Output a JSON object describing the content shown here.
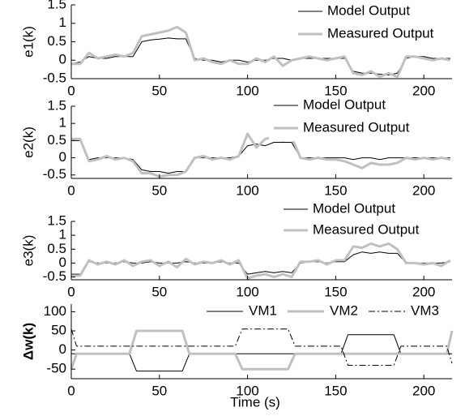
{
  "chart_data": [
    {
      "type": "line",
      "ylabel": "e1(k)",
      "legend": "upper right",
      "x": [
        0,
        5,
        10,
        15,
        20,
        25,
        30,
        35,
        40,
        45,
        50,
        55,
        60,
        65,
        70,
        75,
        80,
        85,
        90,
        95,
        100,
        105,
        110,
        115,
        120,
        125,
        130,
        135,
        140,
        145,
        150,
        155,
        160,
        165,
        170,
        175,
        180,
        185,
        190,
        195,
        200,
        205,
        210,
        215
      ],
      "series": [
        {
          "name": "Model Output",
          "color": "#000000",
          "linewidth": 1,
          "values": [
            -0.1,
            -0.05,
            0.1,
            0.05,
            0.05,
            0.1,
            0.1,
            0.1,
            0.5,
            0.55,
            0.57,
            0.6,
            0.58,
            0.58,
            0.05,
            0,
            0,
            -0.05,
            0,
            0,
            -0.05,
            0,
            0,
            0.05,
            0.05,
            0,
            0.05,
            0.05,
            0.05,
            0.05,
            0.05,
            0.05,
            -0.3,
            -0.35,
            -0.35,
            -0.38,
            -0.4,
            -0.35,
            0.05,
            0.1,
            0.1,
            0.05,
            0.05,
            0.05
          ]
        },
        {
          "name": "Measured Output",
          "color": "#c0c0c0",
          "linewidth": 3,
          "values": [
            -0.1,
            -0.1,
            0.2,
            0.05,
            0.1,
            0.15,
            0.1,
            0.2,
            0.65,
            0.7,
            0.75,
            0.8,
            0.9,
            0.75,
            0,
            0.05,
            -0.05,
            -0.1,
            0,
            -0.1,
            -0.1,
            0.05,
            -0.05,
            0.1,
            -0.15,
            0,
            0.05,
            0.1,
            0.05,
            0,
            0.05,
            0.1,
            -0.35,
            -0.4,
            -0.3,
            -0.45,
            -0.35,
            -0.45,
            0.1,
            0.1,
            0.05,
            0,
            0.05,
            0
          ]
        }
      ],
      "xlim": [
        0,
        216
      ],
      "xticks": [
        0,
        50,
        100,
        150,
        200
      ],
      "ylim": [
        -0.5,
        1.5
      ],
      "yticks": [
        -0.5,
        0,
        0.5,
        1,
        1.5
      ]
    },
    {
      "type": "line",
      "ylabel": "e2(k)",
      "legend": "upper right",
      "x": [
        0,
        5,
        10,
        15,
        20,
        25,
        30,
        35,
        40,
        45,
        50,
        55,
        60,
        65,
        70,
        75,
        80,
        85,
        90,
        95,
        100,
        105,
        110,
        115,
        120,
        125,
        130,
        135,
        140,
        145,
        150,
        155,
        160,
        165,
        170,
        175,
        180,
        185,
        190,
        195,
        200,
        205,
        210,
        215
      ],
      "series": [
        {
          "name": "Model Output",
          "color": "#000000",
          "linewidth": 1,
          "values": [
            0.5,
            0.5,
            -0.05,
            0,
            0,
            0,
            0,
            -0.05,
            -0.35,
            -0.4,
            -0.4,
            -0.45,
            -0.4,
            -0.4,
            0,
            0,
            0,
            0,
            0,
            0.05,
            0.35,
            0.4,
            0.35,
            0.45,
            0.45,
            0.45,
            0,
            0,
            0,
            0,
            0,
            0,
            -0.05,
            0,
            0,
            -0.05,
            0,
            0,
            0,
            0,
            0,
            0,
            0,
            0
          ]
        },
        {
          "name": "Measured Output",
          "color": "#c0c0c0",
          "linewidth": 3,
          "values": [
            0.55,
            0.55,
            -0.1,
            -0.05,
            0.05,
            -0.05,
            0,
            -0.1,
            -0.45,
            -0.45,
            -0.55,
            -0.5,
            -0.5,
            -0.4,
            0,
            0.05,
            -0.05,
            0,
            -0.05,
            0.05,
            0.7,
            0.3,
            0.55,
            0.6,
            0.5,
            0.6,
            0,
            -0.05,
            0,
            -0.05,
            -0.05,
            -0.1,
            -0.2,
            -0.3,
            -0.15,
            -0.2,
            -0.2,
            -0.15,
            0,
            -0.05,
            0,
            -0.05,
            0,
            -0.05
          ]
        }
      ],
      "xlim": [
        0,
        216
      ],
      "xticks": [
        0,
        50,
        100,
        150,
        200
      ],
      "ylim": [
        -0.6,
        1.5
      ],
      "yticks": [
        -0.5,
        0,
        0.5,
        1,
        1.5
      ]
    },
    {
      "type": "line",
      "ylabel": "e3(k)",
      "legend": "upper right",
      "x": [
        0,
        5,
        10,
        15,
        20,
        25,
        30,
        35,
        40,
        45,
        50,
        55,
        60,
        65,
        70,
        75,
        80,
        85,
        90,
        95,
        100,
        105,
        110,
        115,
        120,
        125,
        130,
        135,
        140,
        145,
        150,
        155,
        160,
        165,
        170,
        175,
        180,
        185,
        190,
        195,
        200,
        205,
        210,
        215
      ],
      "series": [
        {
          "name": "Model Output",
          "color": "#000000",
          "linewidth": 1,
          "values": [
            -0.4,
            -0.4,
            0.05,
            0,
            0,
            0,
            0.05,
            0,
            0,
            0.05,
            0,
            0,
            0,
            0.05,
            0,
            0,
            0,
            0.05,
            0,
            0,
            -0.4,
            -0.35,
            -0.3,
            -0.35,
            -0.3,
            -0.35,
            0,
            0.05,
            0.05,
            0,
            0.05,
            0.05,
            0.3,
            0.4,
            0.35,
            0.4,
            0.35,
            0.35,
            0,
            0,
            0,
            0,
            0,
            0.05
          ]
        },
        {
          "name": "Measured Output",
          "color": "#c0c0c0",
          "linewidth": 3,
          "values": [
            -0.45,
            -0.45,
            0.1,
            -0.05,
            0.05,
            -0.05,
            0.1,
            -0.1,
            0.05,
            0.1,
            -0.1,
            0.05,
            -0.15,
            0.15,
            -0.05,
            0.05,
            0,
            0.1,
            -0.05,
            0.1,
            -0.55,
            -0.45,
            -0.4,
            -0.5,
            -0.4,
            -0.5,
            0.05,
            0.05,
            0.1,
            -0.05,
            0.1,
            0.1,
            0.6,
            0.55,
            0.7,
            0.6,
            0.7,
            0.5,
            0,
            0,
            -0.05,
            0,
            -0.1,
            0.1
          ]
        }
      ],
      "xlim": [
        0,
        216
      ],
      "xticks": [
        0,
        50,
        100,
        150,
        200
      ],
      "ylim": [
        -0.6,
        1.5
      ],
      "yticks": [
        -0.5,
        0,
        0.5,
        1,
        1.5
      ]
    },
    {
      "type": "line",
      "ylabel": "Δw(k)",
      "xlabel": "Time (s)",
      "legend": "upper center",
      "x": [
        0,
        3,
        33,
        37,
        63,
        67,
        93,
        97,
        123,
        127,
        153,
        157,
        183,
        187,
        213,
        216
      ],
      "series": [
        {
          "name": "VM1",
          "color": "#000000",
          "linewidth": 1,
          "values": [
            -10,
            -10,
            -10,
            -55,
            -55,
            -10,
            -10,
            -10,
            -10,
            -10,
            -10,
            40,
            40,
            -10,
            -10,
            -10
          ]
        },
        {
          "name": "VM2",
          "color": "#c0c0c0",
          "linewidth": 3,
          "values": [
            -50,
            -10,
            -10,
            50,
            50,
            -10,
            -10,
            -50,
            -50,
            -10,
            -10,
            -10,
            -10,
            -10,
            -10,
            50
          ]
        },
        {
          "name": "VM3",
          "color": "#000000",
          "linewidth": 1,
          "dash": "dashdot",
          "values": [
            55,
            10,
            10,
            10,
            10,
            10,
            10,
            55,
            55,
            10,
            10,
            -40,
            -40,
            10,
            10,
            -35
          ]
        }
      ],
      "xlim": [
        0,
        216
      ],
      "xticks": [
        0,
        50,
        100,
        150,
        200
      ],
      "ylim": [
        -75,
        120
      ],
      "yticks": [
        -50,
        0,
        50,
        100
      ]
    }
  ]
}
